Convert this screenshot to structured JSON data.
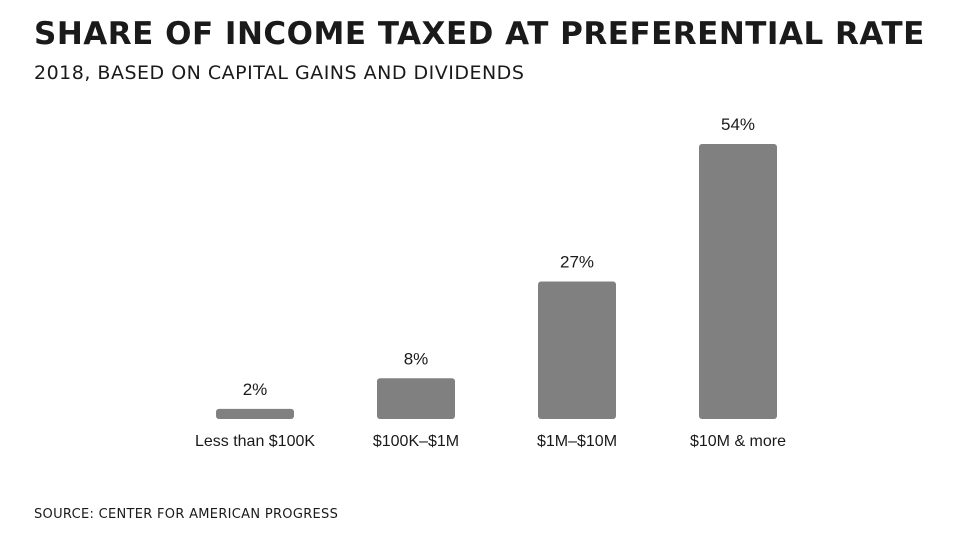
{
  "header": {
    "title": "SHARE OF INCOME TAXED AT PREFERENTIAL RATE",
    "subtitle": "2018, BASED ON CAPITAL GAINS AND DIVIDENDS"
  },
  "footer": {
    "source": "SOURCE: CENTER FOR AMERICAN PROGRESS"
  },
  "chart_data": {
    "type": "bar",
    "title": "SHARE OF INCOME TAXED AT PREFERENTIAL RATE",
    "subtitle": "2018, BASED ON CAPITAL GAINS AND DIVIDENDS",
    "categories": [
      "Less than $100K",
      "$100K–$1M",
      "$1M–$10M",
      "$10M & more"
    ],
    "values": [
      2,
      8,
      27,
      54
    ],
    "value_labels": [
      "2%",
      "8%",
      "27%",
      "54%"
    ],
    "unit": "%",
    "ylim": [
      0,
      54
    ],
    "grid": false,
    "legend": "none",
    "bar_color": "#808080"
  }
}
